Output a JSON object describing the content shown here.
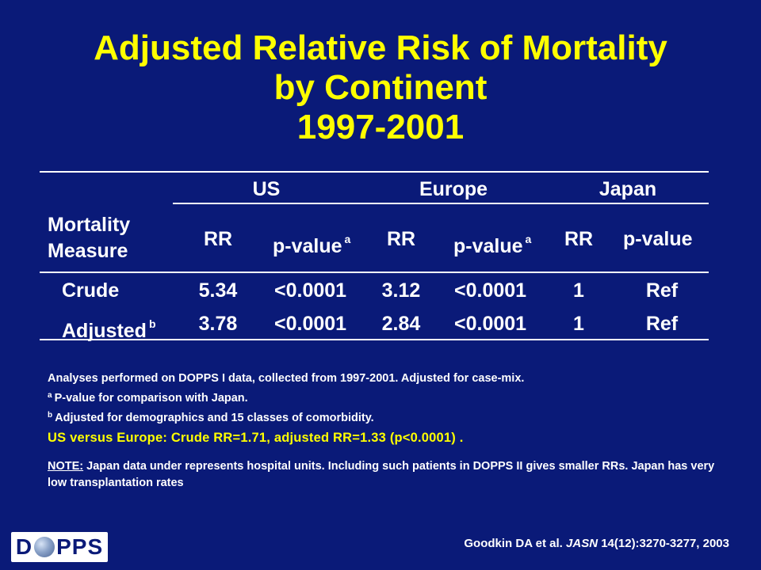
{
  "slide": {
    "title_lines": [
      "Adjusted Relative Risk of Mortality",
      "by Continent",
      "1997-2001"
    ]
  },
  "table": {
    "groups": [
      "US",
      "Europe",
      "Japan"
    ],
    "row_header": [
      "Mortality",
      "Measure"
    ],
    "sub_headers": [
      "RR",
      "p-value",
      "RR",
      "p-value",
      "RR",
      "p-value"
    ],
    "sup_a": "a",
    "sup_b": "b",
    "rows": [
      {
        "label": "Crude",
        "values": [
          "5.34",
          "<0.0001",
          "3.12",
          "<0.0001",
          "1",
          "Ref"
        ]
      },
      {
        "label": "Adjusted",
        "values": [
          "3.78",
          "<0.0001",
          "2.84",
          "<0.0001",
          "1",
          "Ref"
        ]
      }
    ]
  },
  "notes": {
    "line1": "Analyses performed on DOPPS I data, collected from 1997-2001.  Adjusted for case-mix.",
    "line2_sup": "a",
    "line2": "P-value for comparison with Japan.",
    "line3_sup": "b",
    "line3": "Adjusted for demographics and 15 classes of comorbidity.",
    "highlight": "US versus Europe: Crude RR=1.71, adjusted RR=1.33 (p<0.0001) .",
    "note_label": "NOTE:",
    "note_text": " Japan data under represents hospital units.  Including such patients in DOPPS II gives smaller RRs. Japan has very low transplantation rates"
  },
  "citation": {
    "authors": "Goodkin DA et al. ",
    "journal": "JASN",
    "details": " 14(12):3270-3277, 2003"
  },
  "logo": {
    "left": "D",
    "right": "PPS"
  },
  "colors": {
    "background": "#0a1a78",
    "title": "#ffff00",
    "text": "#ffffff",
    "highlight": "#ffff00"
  }
}
